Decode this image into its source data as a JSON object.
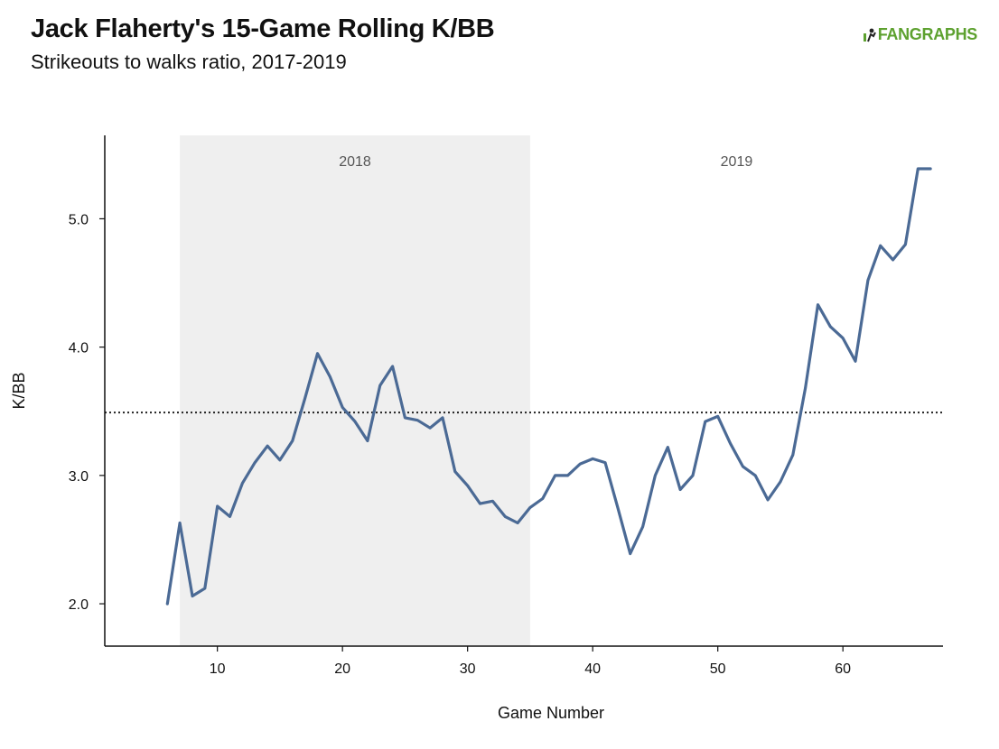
{
  "header": {
    "title": "Jack Flaherty's 15-Game Rolling K/BB",
    "subtitle": "Strikeouts to walks ratio, 2017-2019"
  },
  "logo": {
    "text": "FANGRAPHS",
    "icon": "fangraphs-logo-icon",
    "color": "#5da12f"
  },
  "chart_data": {
    "type": "line",
    "title": "Jack Flaherty's 15-Game Rolling K/BB",
    "subtitle": "Strikeouts to walks ratio, 2017-2019",
    "xlabel": "Game Number",
    "ylabel": "K/BB",
    "xlim": [
      1,
      68
    ],
    "ylim": [
      1.67,
      5.65
    ],
    "xticks": [
      10,
      20,
      30,
      40,
      50,
      60
    ],
    "yticks": [
      2.0,
      3.0,
      4.0,
      5.0
    ],
    "ytick_labels": [
      "2.0",
      "3.0",
      "4.0",
      "5.0"
    ],
    "grid": false,
    "line_color": "#4b6a95",
    "reference_line": {
      "y": 3.49,
      "style": "dotted"
    },
    "regions": [
      {
        "label": "2018",
        "x_start": 7,
        "x_end": 35,
        "color": "#efefef"
      },
      {
        "label": "2019",
        "x_start": 35,
        "x_end": 68,
        "color": "#ffffff"
      }
    ],
    "series": [
      {
        "x": [
          6,
          7,
          8,
          9,
          10,
          11,
          12,
          13,
          14,
          15,
          16,
          17,
          18,
          19,
          20,
          21,
          22,
          23,
          24,
          25,
          26,
          27,
          28,
          29,
          30,
          31,
          32,
          33,
          34,
          35,
          36,
          37,
          38,
          39,
          40,
          41,
          42,
          43,
          44,
          45,
          46,
          47,
          48,
          49,
          50,
          51,
          52,
          53,
          54,
          55,
          56,
          57,
          58,
          59,
          60,
          61,
          62,
          63,
          64,
          65,
          66,
          67
        ],
        "values": [
          2.0,
          2.63,
          2.06,
          2.12,
          2.76,
          2.68,
          2.94,
          3.1,
          3.23,
          3.12,
          3.27,
          3.6,
          3.95,
          3.77,
          3.53,
          3.42,
          3.27,
          3.7,
          3.85,
          3.45,
          3.43,
          3.37,
          3.45,
          3.03,
          2.92,
          2.78,
          2.8,
          2.68,
          2.63,
          2.75,
          2.82,
          3.0,
          3.0,
          3.09,
          3.13,
          3.1,
          2.75,
          2.39,
          2.6,
          3.0,
          3.22,
          2.89,
          3.0,
          3.42,
          3.46,
          3.25,
          3.07,
          3.0,
          2.81,
          2.95,
          3.16,
          3.68,
          4.33,
          4.16,
          4.07,
          3.89,
          4.52,
          4.79,
          4.68,
          4.8,
          5.39,
          5.39
        ]
      }
    ]
  }
}
